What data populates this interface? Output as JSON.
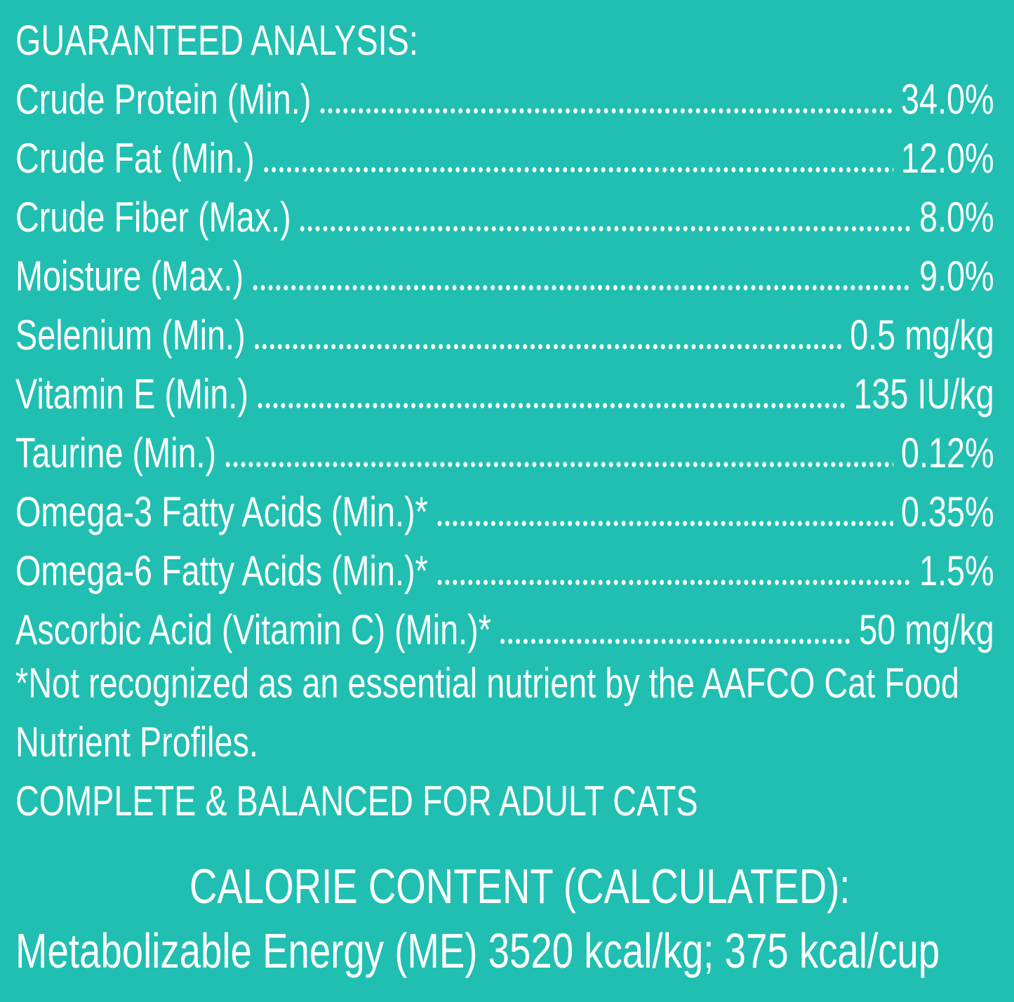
{
  "header": {
    "title": "GUARANTEED ANALYSIS:"
  },
  "analysis": {
    "rows": [
      {
        "label": "Crude Protein (Min.)",
        "value": "34.0%"
      },
      {
        "label": "Crude Fat (Min.)",
        "value": "12.0%"
      },
      {
        "label": "Crude Fiber (Max.)",
        "value": "8.0%"
      },
      {
        "label": "Moisture (Max.)",
        "value": "9.0%"
      },
      {
        "label": "Selenium (Min.)",
        "value": "0.5 mg/kg"
      },
      {
        "label": "Vitamin E (Min.)",
        "value": "135 IU/kg"
      },
      {
        "label": "Taurine (Min.)",
        "value": "0.12%"
      },
      {
        "label": "Omega-3 Fatty Acids (Min.)*",
        "value": "0.35%"
      },
      {
        "label": "Omega-6 Fatty Acids (Min.)*",
        "value": "1.5%"
      },
      {
        "label": "Ascorbic Acid (Vitamin C) (Min.)*",
        "value": "50 mg/kg"
      }
    ]
  },
  "footnote": "*Not recognized as an essential nutrient by the AAFCO Cat Food Nutrient Profiles.",
  "statement": "COMPLETE & BALANCED FOR ADULT CATS",
  "calorie": {
    "title": "CALORIE CONTENT (CALCULATED):",
    "text": "Metabolizable Energy (ME) 3520 kcal/kg; 375 kcal/cup"
  }
}
